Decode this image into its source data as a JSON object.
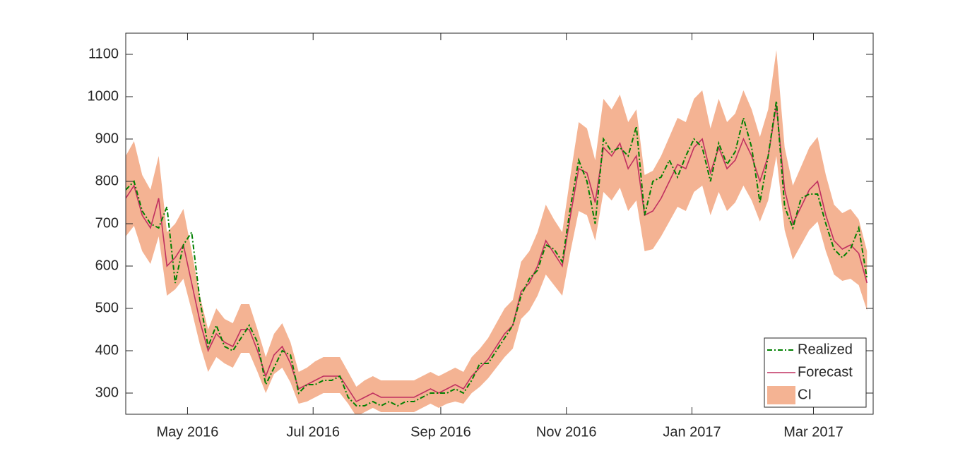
{
  "chart_data": {
    "type": "line",
    "x": [
      0,
      4,
      8,
      12,
      16,
      20,
      24,
      28,
      32,
      36,
      40,
      44,
      48,
      52,
      56,
      60,
      64,
      68,
      72,
      76,
      80,
      84,
      88,
      92,
      96,
      100,
      104,
      108,
      112,
      116,
      120,
      124,
      128,
      132,
      136,
      140,
      144,
      148,
      152,
      156,
      160,
      164,
      168,
      172,
      176,
      180,
      184,
      188,
      192,
      196,
      200,
      204,
      208,
      212,
      216,
      220,
      224,
      228,
      232,
      236,
      240,
      244,
      248,
      252,
      256,
      260,
      264,
      268,
      272,
      276,
      280,
      284,
      288,
      292,
      296,
      300,
      304,
      308,
      312,
      316,
      320,
      324,
      328,
      332,
      336,
      340,
      344,
      348,
      352,
      356,
      360
    ],
    "xlim": [
      0,
      363
    ],
    "xticks": [
      {
        "value": 30,
        "label": "May 2016"
      },
      {
        "value": 91,
        "label": "Jul 2016"
      },
      {
        "value": 153,
        "label": "Sep 2016"
      },
      {
        "value": 214,
        "label": "Nov 2016"
      },
      {
        "value": 275,
        "label": "Jan 2017"
      },
      {
        "value": 334,
        "label": "Mar 2017"
      }
    ],
    "ylim": [
      250,
      1150
    ],
    "yticks": [
      300,
      400,
      500,
      600,
      700,
      800,
      900,
      1000,
      1100
    ],
    "legend": "southeast",
    "series": [
      {
        "name": "Realized",
        "color": "#008000",
        "values": [
          780,
          800,
          730,
          700,
          690,
          740,
          560,
          650,
          680,
          520,
          410,
          460,
          410,
          400,
          430,
          460,
          420,
          320,
          360,
          400,
          390,
          300,
          320,
          320,
          330,
          330,
          340,
          290,
          270,
          270,
          280,
          270,
          280,
          270,
          280,
          280,
          290,
          300,
          300,
          300,
          310,
          300,
          330,
          370,
          370,
          400,
          430,
          460,
          530,
          570,
          590,
          650,
          640,
          610,
          740,
          850,
          800,
          700,
          900,
          870,
          880,
          860,
          930,
          720,
          800,
          810,
          850,
          810,
          860,
          900,
          880,
          800,
          890,
          840,
          870,
          950,
          880,
          750,
          860,
          990,
          740,
          690,
          760,
          770,
          770,
          700,
          640,
          620,
          640,
          690,
          570
        ]
      },
      {
        "name": "Forecast",
        "color": "#c03060",
        "values": [
          760,
          790,
          720,
          690,
          760,
          600,
          620,
          650,
          560,
          470,
          400,
          440,
          420,
          410,
          450,
          450,
          400,
          340,
          390,
          410,
          370,
          310,
          320,
          330,
          340,
          340,
          340,
          310,
          280,
          290,
          300,
          290,
          290,
          290,
          290,
          290,
          300,
          310,
          300,
          310,
          320,
          310,
          340,
          360,
          380,
          410,
          440,
          460,
          540,
          560,
          600,
          660,
          630,
          600,
          720,
          830,
          820,
          750,
          880,
          860,
          890,
          830,
          860,
          720,
          730,
          760,
          800,
          840,
          830,
          880,
          900,
          820,
          880,
          830,
          850,
          900,
          860,
          800,
          860,
          980,
          780,
          700,
          740,
          780,
          800,
          720,
          660,
          640,
          650,
          630,
          560
        ]
      },
      {
        "name": "CI",
        "color": "#f4b393",
        "lower": [
          670,
          695,
          635,
          605,
          670,
          530,
          545,
          570,
          495,
          415,
          350,
          385,
          370,
          360,
          395,
          395,
          350,
          300,
          345,
          360,
          325,
          275,
          280,
          290,
          300,
          300,
          300,
          275,
          245,
          255,
          265,
          255,
          255,
          255,
          255,
          255,
          265,
          275,
          265,
          275,
          280,
          275,
          300,
          315,
          335,
          360,
          385,
          405,
          475,
          495,
          530,
          580,
          555,
          530,
          635,
          730,
          720,
          660,
          775,
          755,
          785,
          730,
          755,
          635,
          640,
          670,
          705,
          740,
          730,
          775,
          790,
          720,
          775,
          730,
          750,
          790,
          755,
          705,
          755,
          860,
          685,
          615,
          650,
          685,
          705,
          635,
          580,
          565,
          570,
          555,
          495
        ],
        "upper": [
          860,
          895,
          815,
          780,
          860,
          680,
          700,
          735,
          635,
          530,
          450,
          500,
          475,
          465,
          510,
          510,
          450,
          385,
          440,
          465,
          420,
          350,
          360,
          375,
          385,
          385,
          385,
          350,
          315,
          330,
          340,
          330,
          330,
          330,
          330,
          330,
          340,
          350,
          340,
          350,
          360,
          350,
          385,
          405,
          430,
          465,
          500,
          520,
          610,
          635,
          680,
          745,
          710,
          680,
          815,
          940,
          925,
          850,
          995,
          970,
          1005,
          940,
          970,
          815,
          825,
          860,
          905,
          950,
          940,
          995,
          1015,
          925,
          995,
          940,
          960,
          1015,
          970,
          905,
          970,
          1110,
          880,
          790,
          835,
          880,
          905,
          815,
          745,
          725,
          735,
          710,
          635
        ]
      }
    ]
  }
}
